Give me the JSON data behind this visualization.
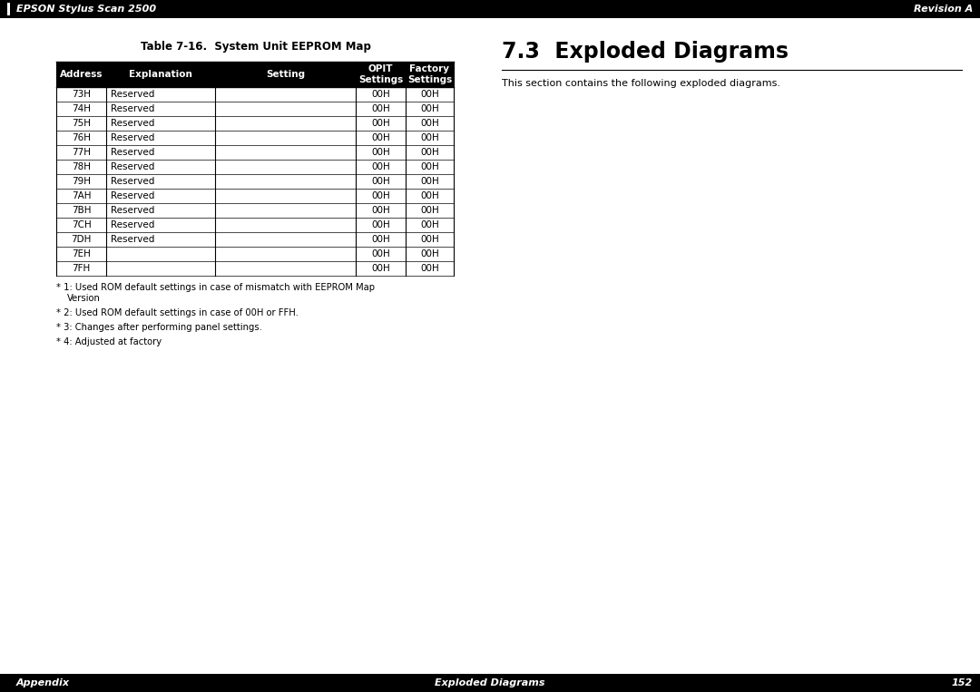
{
  "page_bg": "#ffffff",
  "header_bg": "#000000",
  "header_text_color": "#ffffff",
  "header_left_text": "EPSON Stylus Scan 2500",
  "header_right_text": "Revision A",
  "table_title": "Table 7-16.  System Unit EEPROM Map",
  "table_col_headers": [
    "Address",
    "Explanation",
    "Setting",
    "OPIT\nSettings",
    "Factory\nSettings"
  ],
  "table_col_header_bg": "#000000",
  "table_col_header_color": "#ffffff",
  "table_rows": [
    [
      "73H",
      "Reserved",
      "",
      "00H",
      "00H"
    ],
    [
      "74H",
      "Reserved",
      "",
      "00H",
      "00H"
    ],
    [
      "75H",
      "Reserved",
      "",
      "00H",
      "00H"
    ],
    [
      "76H",
      "Reserved",
      "",
      "00H",
      "00H"
    ],
    [
      "77H",
      "Reserved",
      "",
      "00H",
      "00H"
    ],
    [
      "78H",
      "Reserved",
      "",
      "00H",
      "00H"
    ],
    [
      "79H",
      "Reserved",
      "",
      "00H",
      "00H"
    ],
    [
      "7AH",
      "Reserved",
      "",
      "00H",
      "00H"
    ],
    [
      "7BH",
      "Reserved",
      "",
      "00H",
      "00H"
    ],
    [
      "7CH",
      "Reserved",
      "",
      "00H",
      "00H"
    ],
    [
      "7DH",
      "Reserved",
      "",
      "00H",
      "00H"
    ],
    [
      "7EH",
      "",
      "",
      "00H",
      "00H"
    ],
    [
      "7FH",
      "",
      "",
      "00H",
      "00H"
    ]
  ],
  "footnote1_line1": "* 1: Used ROM default settings in case of mismatch with EEPROM Map",
  "footnote1_line2": "   Version",
  "footnote2": "* 2: Used ROM default settings in case of 00H or FFH.",
  "footnote3": "* 3: Changes after performing panel settings.",
  "footnote4": "* 4: Adjusted at factory",
  "section_title": "7.3  Exploded Diagrams",
  "section_body": "This section contains the following exploded diagrams.",
  "footer_bg": "#000000",
  "footer_text_color": "#ffffff",
  "footer_left_text": "Appendix",
  "footer_center_text": "Exploded Diagrams",
  "footer_right_text": "152"
}
